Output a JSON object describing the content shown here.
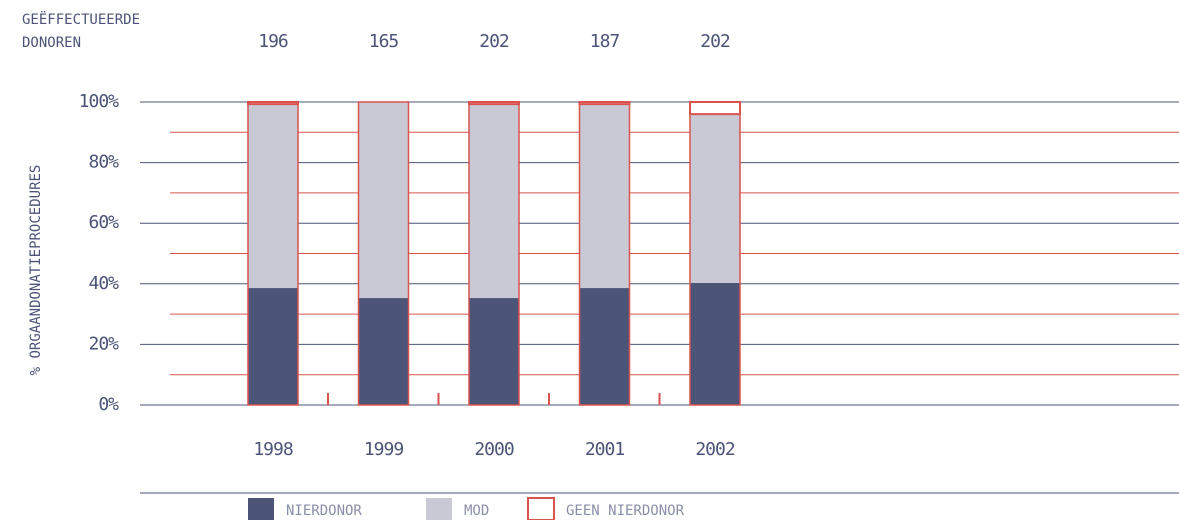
{
  "chart_data": {
    "type": "stacked_bar",
    "top_label": [
      "GEËFFECTUEERDE",
      "DONOREN"
    ],
    "donor_counts": [
      196,
      165,
      202,
      187,
      202
    ],
    "ylabel": "% ORGAANDONATIEPROCEDURES",
    "categories": [
      "1998",
      "1999",
      "2000",
      "2001",
      "2002"
    ],
    "series": [
      {
        "name": "NIERDONOR",
        "color": "#4c5478",
        "values": [
          38.6,
          35.3,
          35.3,
          38.6,
          40.3
        ]
      },
      {
        "name": "MOD",
        "color": "#c8c9d4",
        "values": [
          60.7,
          64.7,
          64.0,
          60.7,
          55.7
        ]
      },
      {
        "name": "GEEN NIERDONOR",
        "color": "#d9534f",
        "outline": true,
        "values": [
          0.7,
          0,
          0.7,
          0.7,
          4.0
        ]
      }
    ],
    "ylim": [
      0,
      100
    ],
    "yticks": [
      {
        "value": 0,
        "label": "0%"
      },
      {
        "value": 20,
        "label": "20%"
      },
      {
        "value": 40,
        "label": "40%"
      },
      {
        "value": 60,
        "label": "60%"
      },
      {
        "value": 80,
        "label": "80%"
      },
      {
        "value": 100,
        "label": "100%"
      }
    ],
    "minor_yticks": [
      10,
      30,
      50,
      70,
      90
    ],
    "grid": true
  }
}
